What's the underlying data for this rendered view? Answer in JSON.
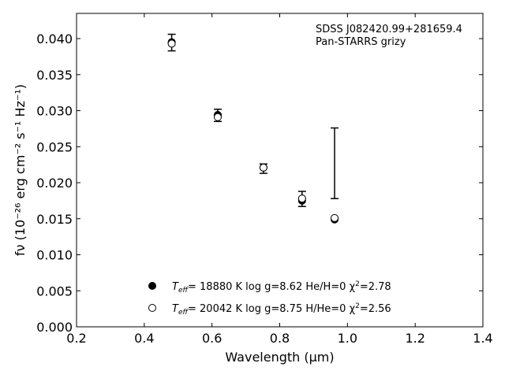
{
  "chart_data": {
    "type": "scatter",
    "xlabel": "Wavelength (μm)",
    "ylabel": "fν (10⁻²⁶ erg cm⁻² s⁻¹ Hz⁻¹)",
    "xlim": [
      0.2,
      1.4
    ],
    "ylim": [
      0.0,
      0.0435
    ],
    "xticks": [
      "0.2",
      "0.4",
      "0.6",
      "0.8",
      "1.0",
      "1.2",
      "1.4"
    ],
    "yticks": [
      "0.000",
      "0.005",
      "0.010",
      "0.015",
      "0.020",
      "0.025",
      "0.030",
      "0.035",
      "0.040"
    ],
    "annotations": [
      "SDSS J082420.99+281659.4",
      "Pan-STARRS grizy"
    ],
    "observed": {
      "x": [
        0.481,
        0.617,
        0.752,
        0.866,
        0.962
      ],
      "y": [
        0.0394,
        0.0294,
        0.0221,
        0.0178,
        null
      ],
      "yerr_low": [
        0.0383,
        0.0285,
        0.0213,
        0.0167,
        0.0178
      ],
      "yerr_high": [
        0.0406,
        0.0302,
        0.0226,
        0.0188,
        0.0276
      ]
    },
    "series": [
      {
        "name": "T_eff= 18880 K  log g=8.62  He/H=0  χ²=2.78",
        "marker": "filled-circle",
        "x": [
          0.481,
          0.617,
          0.752,
          0.866,
          0.962
        ],
        "y": [
          0.0395,
          0.0294,
          0.0221,
          0.0175,
          0.0149
        ]
      },
      {
        "name": "T_eff= 20042 K  log g=8.75  H/He=0  χ²=2.56",
        "marker": "open-circle",
        "x": [
          0.481,
          0.617,
          0.752,
          0.866,
          0.962
        ],
        "y": [
          0.0393,
          0.0291,
          0.0221,
          0.0178,
          0.0151
        ]
      }
    ],
    "legend_entries": [
      {
        "pre": "T",
        "sub": "eff",
        "post": "= 18880 K  log g=8.62  He/H=0  χ",
        "sup": "2",
        "tail": "=2.78"
      },
      {
        "pre": "T",
        "sub": "eff",
        "post": "= 20042 K  log g=8.75  H/He=0  χ",
        "sup": "2",
        "tail": "=2.56"
      }
    ],
    "legend_position": "lower-center",
    "grid": false
  }
}
